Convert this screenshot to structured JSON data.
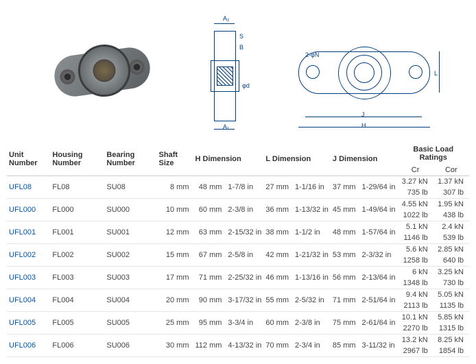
{
  "columns": {
    "unit": "Unit Number",
    "housing": "Housing Number",
    "bearing": "Bearing Number",
    "shaft": "Shaft Size",
    "hdim": "H Dimension",
    "ldim": "L Dimension",
    "jdim": "J Dimension",
    "load": "Basic Load Ratings",
    "cr": "Cr",
    "cor": "Cor"
  },
  "side_labels": {
    "a2": "A₂",
    "s": "S",
    "b": "B",
    "a1": "A₁",
    "phid": "φd",
    "phin": "2-φN",
    "l": "L",
    "j": "J",
    "h": "H"
  },
  "rows": [
    {
      "unit": "UFL08",
      "housing": "FL08",
      "bearing": "SU08",
      "shaft": "8 mm",
      "h_mm": "48 mm",
      "h_in": "1-7/8 in",
      "l_mm": "27 mm",
      "l_in": "1-1/16 in",
      "j_mm": "37 mm",
      "j_in": "1-29/64 in",
      "cr_kn": "3.27 kN",
      "cr_lb": "735 lb",
      "cor_kn": "1.37 kN",
      "cor_lb": "307 lb"
    },
    {
      "unit": "UFL000",
      "housing": "FL000",
      "bearing": "SU000",
      "shaft": "10 mm",
      "h_mm": "60 mm",
      "h_in": "2-3/8 in",
      "l_mm": "36 mm",
      "l_in": "1-13/32 in",
      "j_mm": "45 mm",
      "j_in": "1-49/64 in",
      "cr_kn": "4.55 kN",
      "cr_lb": "1022 lb",
      "cor_kn": "1.95 kN",
      "cor_lb": "438 lb"
    },
    {
      "unit": "UFL001",
      "housing": "FL001",
      "bearing": "SU001",
      "shaft": "12 mm",
      "h_mm": "63 mm",
      "h_in": "2-15/32 in",
      "l_mm": "38 mm",
      "l_in": "1-1/2 in",
      "j_mm": "48 mm",
      "j_in": "1-57/64 in",
      "cr_kn": "5.1 kN",
      "cr_lb": "1146 lb",
      "cor_kn": "2.4 kN",
      "cor_lb": "539 lb"
    },
    {
      "unit": "UFL002",
      "housing": "FL002",
      "bearing": "SU002",
      "shaft": "15 mm",
      "h_mm": "67 mm",
      "h_in": "2-5/8 in",
      "l_mm": "42 mm",
      "l_in": "1-21/32 in",
      "j_mm": "53 mm",
      "j_in": "2-3/32 in",
      "cr_kn": "5.6 kN",
      "cr_lb": "1258 lb",
      "cor_kn": "2.85 kN",
      "cor_lb": "640 lb"
    },
    {
      "unit": "UFL003",
      "housing": "FL003",
      "bearing": "SU003",
      "shaft": "17 mm",
      "h_mm": "71 mm",
      "h_in": "2-25/32 in",
      "l_mm": "46 mm",
      "l_in": "1-13/16 in",
      "j_mm": "56 mm",
      "j_in": "2-13/64 in",
      "cr_kn": "6 kN",
      "cr_lb": "1348 lb",
      "cor_kn": "3.25 kN",
      "cor_lb": "730 lb"
    },
    {
      "unit": "UFL004",
      "housing": "FL004",
      "bearing": "SU004",
      "shaft": "20 mm",
      "h_mm": "90 mm",
      "h_in": "3-17/32 in",
      "l_mm": "55 mm",
      "l_in": "2-5/32 in",
      "j_mm": "71 mm",
      "j_in": "2-51/64 in",
      "cr_kn": "9.4 kN",
      "cr_lb": "2113 lb",
      "cor_kn": "5.05 kN",
      "cor_lb": "1135 lb"
    },
    {
      "unit": "UFL005",
      "housing": "FL005",
      "bearing": "SU005",
      "shaft": "25 mm",
      "h_mm": "95 mm",
      "h_in": "3-3/4 in",
      "l_mm": "60 mm",
      "l_in": "2-3/8 in",
      "j_mm": "75 mm",
      "j_in": "2-61/64 in",
      "cr_kn": "10.1 kN",
      "cr_lb": "2270 lb",
      "cor_kn": "5.85 kN",
      "cor_lb": "1315 lb"
    },
    {
      "unit": "UFL006",
      "housing": "FL006",
      "bearing": "SU006",
      "shaft": "30 mm",
      "h_mm": "112 mm",
      "h_in": "4-13/32 in",
      "l_mm": "70 mm",
      "l_in": "2-3/4 in",
      "j_mm": "85 mm",
      "j_in": "3-11/32 in",
      "cr_kn": "13.2 kN",
      "cr_lb": "2967 lb",
      "cor_kn": "8.25 kN",
      "cor_lb": "1854 lb"
    }
  ]
}
